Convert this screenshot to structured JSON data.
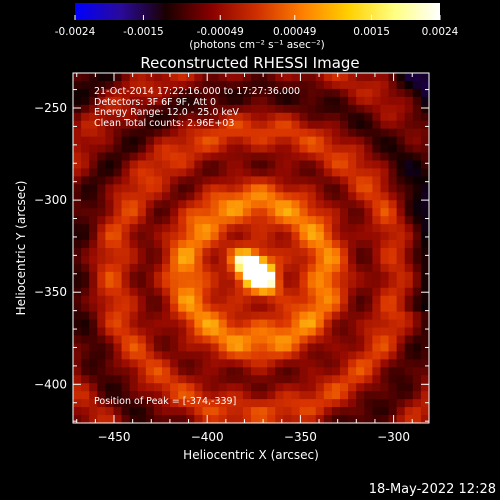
{
  "plot": {
    "title": "Reconstructed RHESSI Image",
    "info_lines": [
      "21-Oct-2014 17:22:16.000 to 17:27:36.000",
      "Detectors: 3F 6F 9F, Att 0",
      "Energy Range: 12.0 - 25.0 keV",
      "Clean    Total counts: 2.96E+03"
    ],
    "peak_label": "Position of Peak = [-374,-339]"
  },
  "colorbar": {
    "ticks": [
      {
        "value": -0.0024,
        "label": "-0.0024"
      },
      {
        "value": -0.0015,
        "label": "-0.0015"
      },
      {
        "value": -0.00049,
        "label": "-0.00049"
      },
      {
        "value": 0.00049,
        "label": "0.00049"
      },
      {
        "value": 0.0015,
        "label": "0.0015"
      },
      {
        "value": 0.0024,
        "label": "0.0024"
      }
    ],
    "range": [
      -0.0024,
      0.0024
    ],
    "unit": "(photons cm⁻² s⁻¹ asec⁻²)",
    "colormap": [
      "#0000ff",
      "#2a0a9a",
      "#1a0000",
      "#8a0000",
      "#d03000",
      "#ff8000",
      "#ffd000",
      "#ffff80",
      "#ffffff"
    ]
  },
  "footer": {
    "date": "18-May-2022 12:28"
  },
  "chart_data": {
    "type": "heatmap",
    "title": "Reconstructed RHESSI Image",
    "xlabel": "Heliocentric X (arcsec)",
    "ylabel": "Heliocentric Y (arcsec)",
    "xlim": [
      -472,
      -281
    ],
    "ylim": [
      -421,
      -231
    ],
    "xticks": [
      {
        "value": -450,
        "label": "−450"
      },
      {
        "value": -400,
        "label": "−400"
      },
      {
        "value": -350,
        "label": "−350"
      },
      {
        "value": -300,
        "label": "−300"
      }
    ],
    "yticks": [
      {
        "value": -400,
        "label": "−400"
      },
      {
        "value": -350,
        "label": "−350"
      },
      {
        "value": -300,
        "label": "−300"
      },
      {
        "value": -250,
        "label": "−250"
      }
    ],
    "peak": {
      "x": -374,
      "y": -339
    },
    "grid": false
  }
}
